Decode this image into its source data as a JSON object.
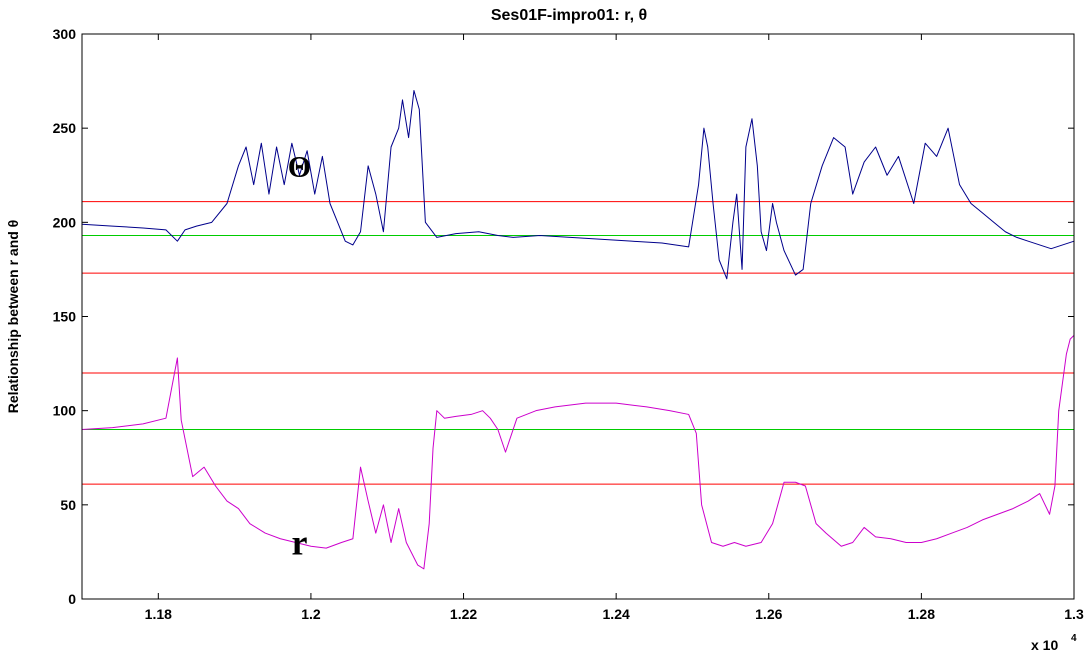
{
  "chart_data": {
    "type": "line",
    "title": "Ses01F-impro01: r, θ",
    "xlabel": "",
    "ylabel": "Relationship between r and  θ",
    "x_multiplier_label": "x 10",
    "x_multiplier_exponent": "4",
    "xlim": [
      1.17,
      1.3
    ],
    "ylim": [
      0,
      300
    ],
    "x_ticks": [
      1.18,
      1.2,
      1.22,
      1.24,
      1.26,
      1.28,
      1.3
    ],
    "x_tick_labels": [
      "1.18",
      "1.2",
      "1.22",
      "1.24",
      "1.26",
      "1.28",
      "1.3"
    ],
    "y_ticks": [
      0,
      50,
      100,
      150,
      200,
      250,
      300
    ],
    "y_tick_labels": [
      "0",
      "50",
      "100",
      "150",
      "200",
      "250",
      "300"
    ],
    "grid": false,
    "annotations": [
      {
        "text": "Θ",
        "x": 1.1985,
        "y": 228
      },
      {
        "text": "r",
        "x": 1.1985,
        "y": 28
      }
    ],
    "hlines": [
      {
        "y": 211,
        "color": "#ff0000"
      },
      {
        "y": 193,
        "color": "#00cc00"
      },
      {
        "y": 173,
        "color": "#ff0000"
      },
      {
        "y": 120,
        "color": "#ff0000"
      },
      {
        "y": 90,
        "color": "#00cc00"
      },
      {
        "y": 61,
        "color": "#ff0000"
      }
    ],
    "series": [
      {
        "color": "#00008b",
        "x": [
          1.17,
          1.174,
          1.178,
          1.181,
          1.1825,
          1.1835,
          1.185,
          1.187,
          1.189,
          1.1905,
          1.1915,
          1.1925,
          1.1935,
          1.1945,
          1.1955,
          1.1965,
          1.1975,
          1.1985,
          1.1995,
          1.2005,
          1.2015,
          1.2025,
          1.2035,
          1.2045,
          1.2055,
          1.2065,
          1.2075,
          1.2085,
          1.2095,
          1.2105,
          1.2115,
          1.212,
          1.2128,
          1.2135,
          1.2142,
          1.215,
          1.2165,
          1.219,
          1.222,
          1.2245,
          1.2265,
          1.23,
          1.234,
          1.238,
          1.242,
          1.246,
          1.2495,
          1.2508,
          1.2515,
          1.252,
          1.2527,
          1.2535,
          1.2545,
          1.2553,
          1.2558,
          1.2565,
          1.257,
          1.2578,
          1.2585,
          1.259,
          1.2597,
          1.2605,
          1.261,
          1.262,
          1.2635,
          1.2645,
          1.2655,
          1.267,
          1.2685,
          1.27,
          1.271,
          1.2725,
          1.274,
          1.2755,
          1.277,
          1.279,
          1.2805,
          1.282,
          1.2835,
          1.285,
          1.2865,
          1.288,
          1.2895,
          1.291,
          1.2925,
          1.294,
          1.2955,
          1.297,
          1.2985,
          1.3
        ],
        "values": [
          199,
          198,
          197,
          196,
          190,
          196,
          198,
          200,
          210,
          230,
          240,
          220,
          242,
          215,
          240,
          220,
          242,
          225,
          238,
          215,
          235,
          210,
          200,
          190,
          188,
          195,
          230,
          215,
          195,
          240,
          250,
          265,
          245,
          270,
          260,
          200,
          192,
          194,
          195,
          193,
          192,
          193,
          192,
          191,
          190,
          189,
          187,
          220,
          250,
          240,
          210,
          180,
          170,
          200,
          215,
          175,
          240,
          255,
          230,
          195,
          185,
          210,
          200,
          185,
          172,
          175,
          210,
          230,
          245,
          240,
          215,
          232,
          240,
          225,
          235,
          210,
          242,
          235,
          250,
          220,
          210,
          205,
          200,
          195,
          192,
          190,
          188,
          186,
          188,
          190
        ]
      },
      {
        "color": "#cc00cc",
        "x": [
          1.17,
          1.174,
          1.178,
          1.181,
          1.1825,
          1.183,
          1.1845,
          1.186,
          1.1875,
          1.189,
          1.1905,
          1.192,
          1.194,
          1.196,
          1.198,
          1.2,
          1.202,
          1.204,
          1.2055,
          1.2065,
          1.2075,
          1.2085,
          1.2095,
          1.2105,
          1.2115,
          1.2125,
          1.214,
          1.2148,
          1.2155,
          1.216,
          1.2165,
          1.2175,
          1.219,
          1.221,
          1.2225,
          1.2235,
          1.2245,
          1.2255,
          1.227,
          1.2295,
          1.232,
          1.236,
          1.24,
          1.244,
          1.247,
          1.2495,
          1.2505,
          1.2512,
          1.2525,
          1.254,
          1.2555,
          1.257,
          1.259,
          1.2605,
          1.262,
          1.2635,
          1.2648,
          1.2662,
          1.2675,
          1.2695,
          1.271,
          1.2725,
          1.274,
          1.276,
          1.278,
          1.28,
          1.282,
          1.284,
          1.286,
          1.288,
          1.29,
          1.292,
          1.294,
          1.2955,
          1.2968,
          1.2975,
          1.298,
          1.2985,
          1.299,
          1.2995,
          1.3
        ],
        "values": [
          90,
          91,
          93,
          96,
          128,
          95,
          65,
          70,
          60,
          52,
          48,
          40,
          35,
          32,
          30,
          28,
          27,
          30,
          32,
          70,
          52,
          35,
          50,
          30,
          48,
          30,
          18,
          16,
          40,
          80,
          100,
          96,
          97,
          98,
          100,
          96,
          90,
          78,
          96,
          100,
          102,
          104,
          104,
          102,
          100,
          98,
          88,
          50,
          30,
          28,
          30,
          28,
          30,
          40,
          62,
          62,
          60,
          40,
          35,
          28,
          30,
          38,
          33,
          32,
          30,
          30,
          32,
          35,
          38,
          42,
          45,
          48,
          52,
          56,
          45,
          60,
          100,
          115,
          130,
          138,
          140
        ]
      }
    ]
  }
}
